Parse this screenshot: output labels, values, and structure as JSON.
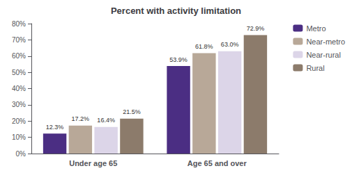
{
  "chart_data": {
    "type": "bar",
    "title": "Percent with activity limitation",
    "categories": [
      "Under age 65",
      "Age 65 and over"
    ],
    "series": [
      {
        "name": "Metro",
        "color": "#4b2e83",
        "values": [
          12.3,
          53.9
        ],
        "value_labels": [
          "12.3%",
          "53.9%"
        ]
      },
      {
        "name": "Near-metro",
        "color": "#b8a898",
        "values": [
          17.2,
          61.8
        ],
        "value_labels": [
          "17.2%",
          "61.8%"
        ]
      },
      {
        "name": "Near-rural",
        "color": "#dcd5e8",
        "values": [
          16.4,
          63.0
        ],
        "value_labels": [
          "16.4%",
          "63.0%"
        ]
      },
      {
        "name": "Rural",
        "color": "#8c7b6b",
        "values": [
          21.5,
          72.9
        ],
        "value_labels": [
          "21.5%",
          "72.9%"
        ]
      }
    ],
    "ylim": [
      0,
      80
    ],
    "yticks": [
      {
        "value": 0,
        "label": "0%"
      },
      {
        "value": 10,
        "label": "10%"
      },
      {
        "value": 20,
        "label": "20%"
      },
      {
        "value": 30,
        "label": "30%"
      },
      {
        "value": 40,
        "label": "40%"
      },
      {
        "value": 50,
        "label": "50%"
      },
      {
        "value": 60,
        "label": "60%"
      },
      {
        "value": 70,
        "label": "70%"
      },
      {
        "value": 80,
        "label": "80%"
      }
    ],
    "grid": false,
    "legend": "right",
    "data_labels": true
  }
}
